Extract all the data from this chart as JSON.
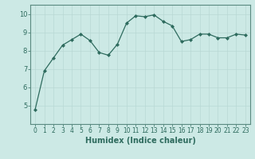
{
  "x": [
    0,
    1,
    2,
    3,
    4,
    5,
    6,
    7,
    8,
    9,
    10,
    11,
    12,
    13,
    14,
    15,
    16,
    17,
    18,
    19,
    20,
    21,
    22,
    23
  ],
  "y": [
    4.8,
    6.9,
    7.6,
    8.3,
    8.6,
    8.9,
    8.55,
    7.9,
    7.75,
    8.35,
    9.5,
    9.9,
    9.85,
    9.95,
    9.6,
    9.35,
    8.5,
    8.6,
    8.9,
    8.9,
    8.7,
    8.7,
    8.9,
    8.85
  ],
  "xlabel": "Humidex (Indice chaleur)",
  "ylim": [
    4,
    10.5
  ],
  "xlim": [
    -0.5,
    23.5
  ],
  "yticks": [
    5,
    6,
    7,
    8,
    9,
    10
  ],
  "xticks": [
    0,
    1,
    2,
    3,
    4,
    5,
    6,
    7,
    8,
    9,
    10,
    11,
    12,
    13,
    14,
    15,
    16,
    17,
    18,
    19,
    20,
    21,
    22,
    23
  ],
  "line_color": "#2e6b5e",
  "marker_color": "#2e6b5e",
  "bg_color": "#cce9e5",
  "grid_color": "#b8d8d4",
  "tick_label_color": "#2e6b5e",
  "xlabel_color": "#2e6b5e",
  "axis_color": "#5a8a80",
  "font_size_ticks": 5.5,
  "font_size_xlabel": 7.0
}
